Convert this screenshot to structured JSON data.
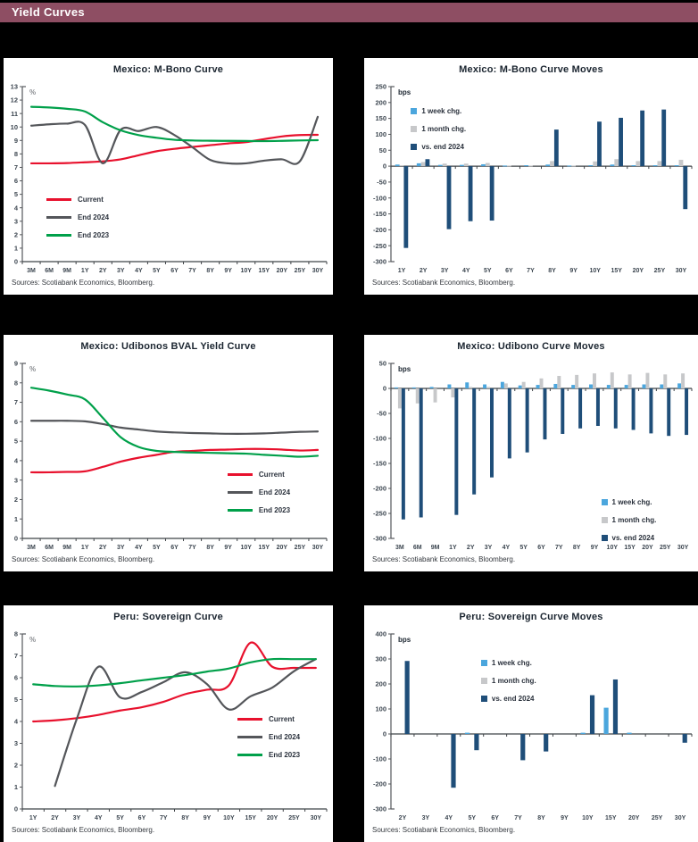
{
  "page": {
    "title": "Yield Curves"
  },
  "colors": {
    "header_bg": "#8e4e63",
    "header_text": "#ffffff",
    "title_color": "#1b2530",
    "axis_text": "#3c4650",
    "axis_line": "#55585c",
    "source_text": "#33373d",
    "current_red": "#e8112d",
    "end2024_gray": "#54565a",
    "end2023_green": "#00a04a",
    "week_blue": "#4ba6dd",
    "month_gray": "#c7c8ca",
    "end2024_navy": "#1f4e79"
  },
  "chart_data": [
    {
      "type": "line",
      "title": "Mexico: M-Bono Curve",
      "unit_label": "%",
      "source": "Sources: Scotiabank Economics, Bloomberg.",
      "categories": [
        "3M",
        "6M",
        "9M",
        "1Y",
        "2Y",
        "3Y",
        "4Y",
        "5Y",
        "6Y",
        "7Y",
        "8Y",
        "9Y",
        "10Y",
        "15Y",
        "20Y",
        "25Y",
        "30Y"
      ],
      "ylim": [
        0,
        13
      ],
      "ytick_step": 1,
      "grid": false,
      "legend_pos": {
        "left": "13%",
        "top": "56%"
      },
      "series": [
        {
          "name": "Current",
          "color": "current_red",
          "values": [
            7.3,
            7.3,
            7.32,
            7.38,
            7.45,
            7.6,
            7.9,
            8.2,
            8.38,
            8.52,
            8.65,
            8.78,
            8.88,
            9.1,
            9.3,
            9.4,
            9.42
          ]
        },
        {
          "name": "End 2024",
          "color": "end2024_gray",
          "values": [
            10.1,
            10.2,
            10.25,
            10.15,
            7.3,
            9.8,
            9.7,
            10.0,
            9.4,
            8.5,
            7.55,
            7.3,
            7.3,
            7.5,
            7.6,
            7.45,
            10.75
          ]
        },
        {
          "name": "End 2023",
          "color": "end2023_green",
          "values": [
            11.5,
            11.45,
            11.35,
            11.15,
            10.35,
            9.75,
            9.4,
            9.2,
            9.05,
            9.0,
            8.98,
            8.97,
            8.96,
            8.95,
            8.97,
            9.0,
            9.02
          ]
        }
      ]
    },
    {
      "type": "bar",
      "title": "Mexico: M-Bono Curve Moves",
      "unit_label": "bps",
      "source": "Sources: Scotiabank Economics, Bloomberg.",
      "categories": [
        "1Y",
        "2Y",
        "3Y",
        "4Y",
        "5Y",
        "6Y",
        "7Y",
        "8Y",
        "9Y",
        "10Y",
        "15Y",
        "20Y",
        "25Y",
        "30Y"
      ],
      "ylim": [
        -300,
        250
      ],
      "ytick_step": 50,
      "grid": false,
      "legend_pos": {
        "left": "14%",
        "top": "12%"
      },
      "series": [
        {
          "name": "1 week chg.",
          "color": "week_blue",
          "values": [
            5,
            9,
            4,
            4,
            6,
            2,
            3,
            5,
            2,
            3,
            5,
            3,
            3,
            3
          ]
        },
        {
          "name": "1 month chg.",
          "color": "month_gray",
          "values": [
            3,
            13,
            8,
            8,
            10,
            2,
            2,
            16,
            2,
            15,
            22,
            16,
            16,
            20
          ]
        },
        {
          "name": "vs. end 2024",
          "color": "end2024_navy",
          "values": [
            -257,
            22,
            -198,
            -173,
            -171,
            null,
            null,
            115,
            null,
            140,
            152,
            175,
            178,
            -135
          ]
        }
      ]
    },
    {
      "type": "line",
      "title": "Mexico: Udibonos BVAL Yield Curve",
      "unit_label": "%",
      "source": "Sources: Scotiabank Economics, Bloomberg.",
      "categories": [
        "3M",
        "6M",
        "9M",
        "1Y",
        "2Y",
        "3Y",
        "4Y",
        "5Y",
        "6Y",
        "7Y",
        "8Y",
        "9Y",
        "10Y",
        "15Y",
        "20Y",
        "25Y",
        "30Y"
      ],
      "ylim": [
        0,
        9
      ],
      "ytick_step": 1,
      "grid": false,
      "legend_pos": {
        "left": "68%",
        "top": "55%"
      },
      "series": [
        {
          "name": "Current",
          "color": "current_red",
          "values": [
            3.4,
            3.4,
            3.42,
            3.45,
            3.68,
            3.95,
            4.15,
            4.3,
            4.45,
            4.5,
            4.55,
            4.57,
            4.6,
            4.6,
            4.57,
            4.52,
            4.55
          ]
        },
        {
          "name": "End 2024",
          "color": "end2024_gray",
          "values": [
            6.05,
            6.05,
            6.05,
            6.02,
            5.88,
            5.7,
            5.6,
            5.5,
            5.45,
            5.42,
            5.4,
            5.38,
            5.38,
            5.4,
            5.44,
            5.48,
            5.5
          ]
        },
        {
          "name": "End 2023",
          "color": "end2023_green",
          "values": [
            7.75,
            7.6,
            7.4,
            7.15,
            6.2,
            5.2,
            4.7,
            4.5,
            4.45,
            4.42,
            4.4,
            4.38,
            4.36,
            4.3,
            4.25,
            4.2,
            4.25
          ]
        }
      ]
    },
    {
      "type": "bar",
      "title": "Mexico: Udibono Curve Moves",
      "unit_label": "bps",
      "source": "Sources: Scotiabank Economics, Bloomberg.",
      "categories": [
        "3M",
        "6M",
        "9M",
        "1Y",
        "2Y",
        "3Y",
        "4Y",
        "5Y",
        "6Y",
        "7Y",
        "8Y",
        "9Y",
        "10Y",
        "15Y",
        "20Y",
        "25Y",
        "30Y"
      ],
      "ylim": [
        -300,
        50
      ],
      "ytick_step": 50,
      "grid": false,
      "legend_pos": {
        "left": "71%",
        "top": "69%"
      },
      "series": [
        {
          "name": "1 week chg.",
          "color": "week_blue",
          "values": [
            2,
            2,
            3,
            8,
            12,
            8,
            13,
            6,
            7,
            9,
            7,
            8,
            7,
            7,
            8,
            8,
            10
          ]
        },
        {
          "name": "1 month chg.",
          "color": "month_gray",
          "values": [
            -40,
            -30,
            -28,
            -18,
            3,
            3,
            10,
            13,
            20,
            25,
            27,
            30,
            32,
            28,
            31,
            28,
            30
          ]
        },
        {
          "name": "vs. end 2024",
          "color": "end2024_navy",
          "values": [
            -262,
            -258,
            null,
            -253,
            -212,
            -178,
            -140,
            -128,
            -102,
            -91,
            -80,
            -75,
            -80,
            -83,
            -90,
            -95,
            -93
          ]
        }
      ]
    },
    {
      "type": "line",
      "title": "Peru: Sovereign Curve",
      "unit_label": "%",
      "source": "Sources: Scotiabank Economics, Bloomberg.",
      "categories": [
        "1Y",
        "2Y",
        "3Y",
        "4Y",
        "5Y",
        "6Y",
        "7Y",
        "8Y",
        "9Y",
        "10Y",
        "15Y",
        "20Y",
        "25Y",
        "30Y"
      ],
      "ylim": [
        0,
        8
      ],
      "ytick_step": 1,
      "grid": false,
      "legend_pos": {
        "left": "71%",
        "top": "42%"
      },
      "series": [
        {
          "name": "Current",
          "color": "current_red",
          "values": [
            4.0,
            4.05,
            4.15,
            4.3,
            4.5,
            4.65,
            4.9,
            5.25,
            5.45,
            5.65,
            7.6,
            6.5,
            6.45,
            6.45
          ]
        },
        {
          "name": "End 2024",
          "color": "end2024_gray",
          "values": [
            null,
            1.05,
            4.1,
            6.5,
            5.1,
            5.35,
            5.8,
            6.25,
            5.7,
            4.55,
            5.15,
            5.55,
            6.3,
            6.85
          ]
        },
        {
          "name": "End 2023",
          "color": "end2023_green",
          "values": [
            5.7,
            5.62,
            5.6,
            5.65,
            5.75,
            5.88,
            6.0,
            6.12,
            6.28,
            6.42,
            6.7,
            6.85,
            6.85,
            6.85
          ]
        }
      ]
    },
    {
      "type": "bar",
      "title": "Peru: Sovereign Curve Moves",
      "unit_label": "bps",
      "source": "Sources: Scotiabank Economics, Bloomberg.",
      "categories": [
        "2Y",
        "3Y",
        "4Y",
        "5Y",
        "6Y",
        "7Y",
        "8Y",
        "9Y",
        "10Y",
        "15Y",
        "20Y",
        "25Y",
        "30Y"
      ],
      "ylim": [
        -300,
        400
      ],
      "ytick_step": 100,
      "grid": false,
      "legend_pos": {
        "left": "35%",
        "top": "14%"
      },
      "series": [
        {
          "name": "1 week chg.",
          "color": "week_blue",
          "values": [
            null,
            null,
            null,
            5,
            null,
            null,
            null,
            null,
            5,
            105,
            5,
            null,
            null
          ]
        },
        {
          "name": "1 month chg.",
          "color": "month_gray",
          "values": [
            null,
            null,
            null,
            null,
            null,
            null,
            null,
            null,
            null,
            null,
            null,
            null,
            null
          ]
        },
        {
          "name": "vs. end 2024",
          "color": "end2024_navy",
          "values": [
            292,
            null,
            -215,
            -65,
            null,
            -105,
            -70,
            null,
            155,
            218,
            null,
            null,
            -35
          ]
        }
      ]
    }
  ]
}
